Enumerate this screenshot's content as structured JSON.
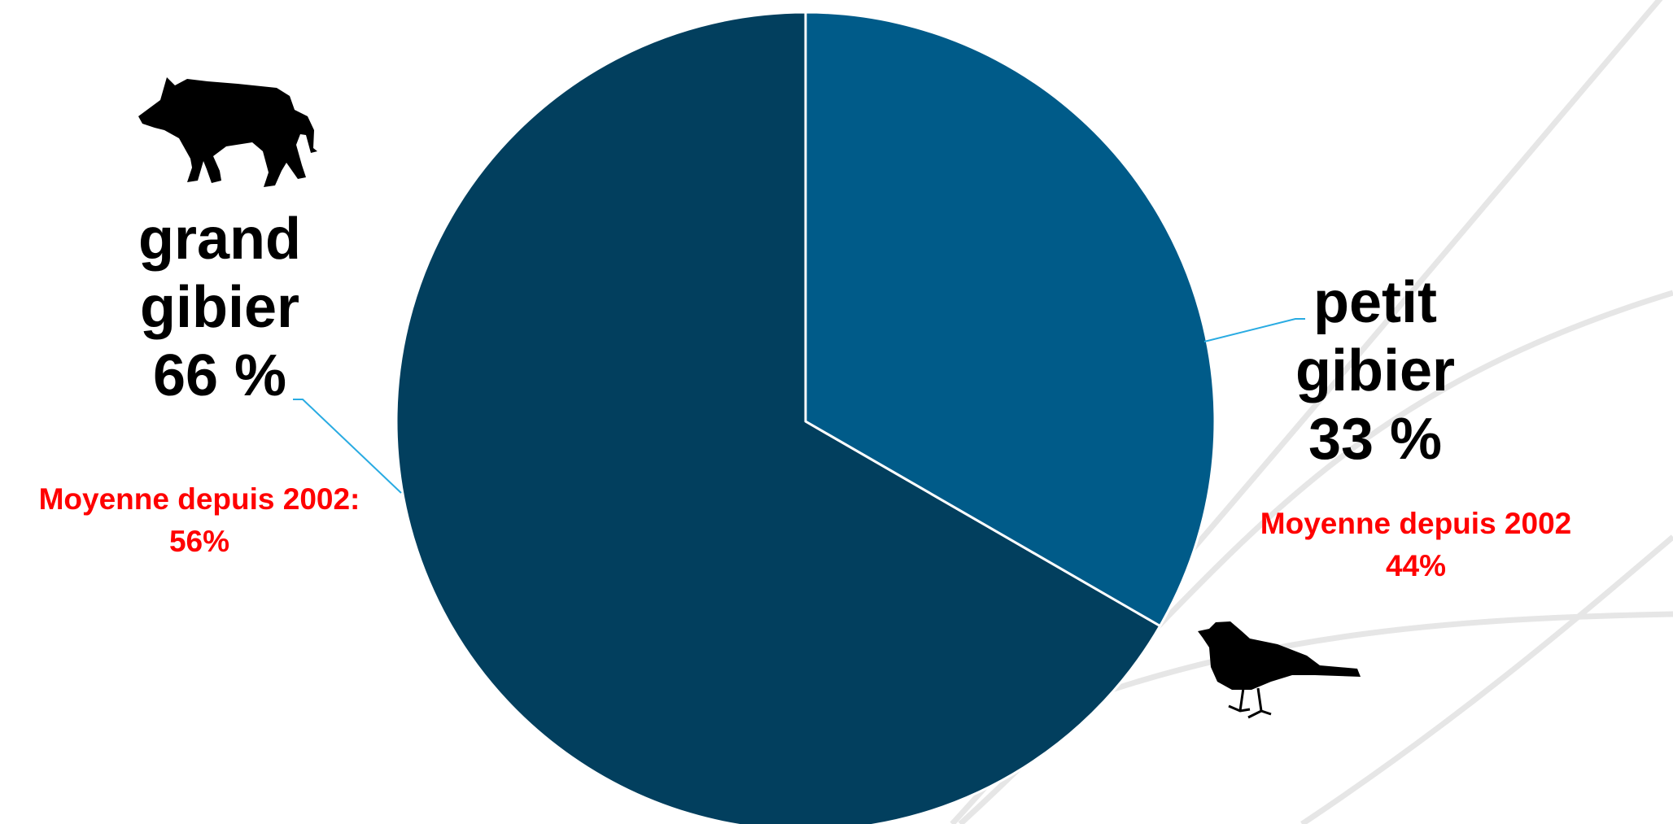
{
  "chart_data": {
    "type": "pie",
    "slices": [
      {
        "label_lines": [
          "grand",
          "gibier"
        ],
        "value_text": "66 %",
        "value": 66,
        "color": "#023f5e",
        "average_text_lines": [
          "Moyenne depuis 2002:",
          "56%"
        ],
        "icon": "boar-silhouette-icon"
      },
      {
        "label_lines": [
          "petit",
          "gibier"
        ],
        "value_text": "33 %",
        "value": 33,
        "color": "#005b89",
        "average_text_lines": [
          "Moyenne depuis 2002",
          "44%"
        ],
        "icon": "bird-silhouette-icon"
      }
    ],
    "title": "",
    "legend": "none",
    "label_color": "#000000",
    "average_color": "#ff0000",
    "leader_line_color": "#29abe2",
    "background_arc_color": "#e6e6e6"
  }
}
